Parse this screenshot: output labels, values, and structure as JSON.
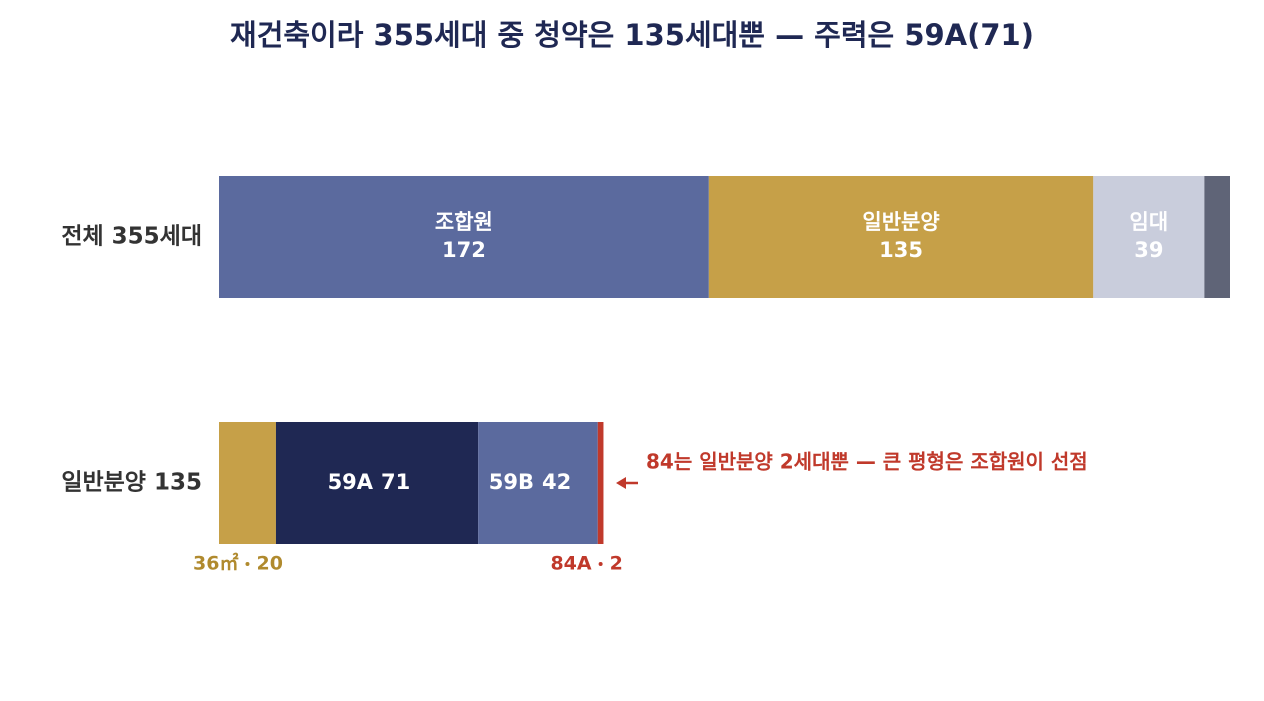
{
  "chart_data": {
    "type": "stacked-bar",
    "title": "재건축이라 355세대 중 청약은 135세대뿐 — 주력은 59A(71)",
    "xlim": [
      0,
      355
    ],
    "annotation": "84는 일반분양 2세대뿐 — 큰 평형은 조합원이 선점",
    "annotation_color": "#c0392b",
    "rows": [
      {
        "category": "전체 355세대",
        "segments": [
          {
            "name": "조합원",
            "value": 172,
            "color": "#5b6a9e",
            "label_position": "inside"
          },
          {
            "name": "일반분양",
            "value": 135,
            "color": "#c6a048",
            "label_position": "inside"
          },
          {
            "name": "임대",
            "value": 39,
            "color": "#c9cddc",
            "label_position": "inside"
          },
          {
            "name": null,
            "value": 9,
            "color": "#5f6477",
            "label_position": "none"
          }
        ]
      },
      {
        "category": "일반분양 135",
        "segments": [
          {
            "name": "36㎡",
            "value": 20,
            "color": "#c6a048",
            "label_position": "below"
          },
          {
            "name": "59A",
            "value": 71,
            "color": "#1f2853",
            "label_position": "inline"
          },
          {
            "name": "59B",
            "value": 42,
            "color": "#5b6a9e",
            "label_position": "inline"
          },
          {
            "name": "84A",
            "value": 2,
            "color": "#c0392b",
            "label_position": "below"
          }
        ]
      }
    ]
  }
}
